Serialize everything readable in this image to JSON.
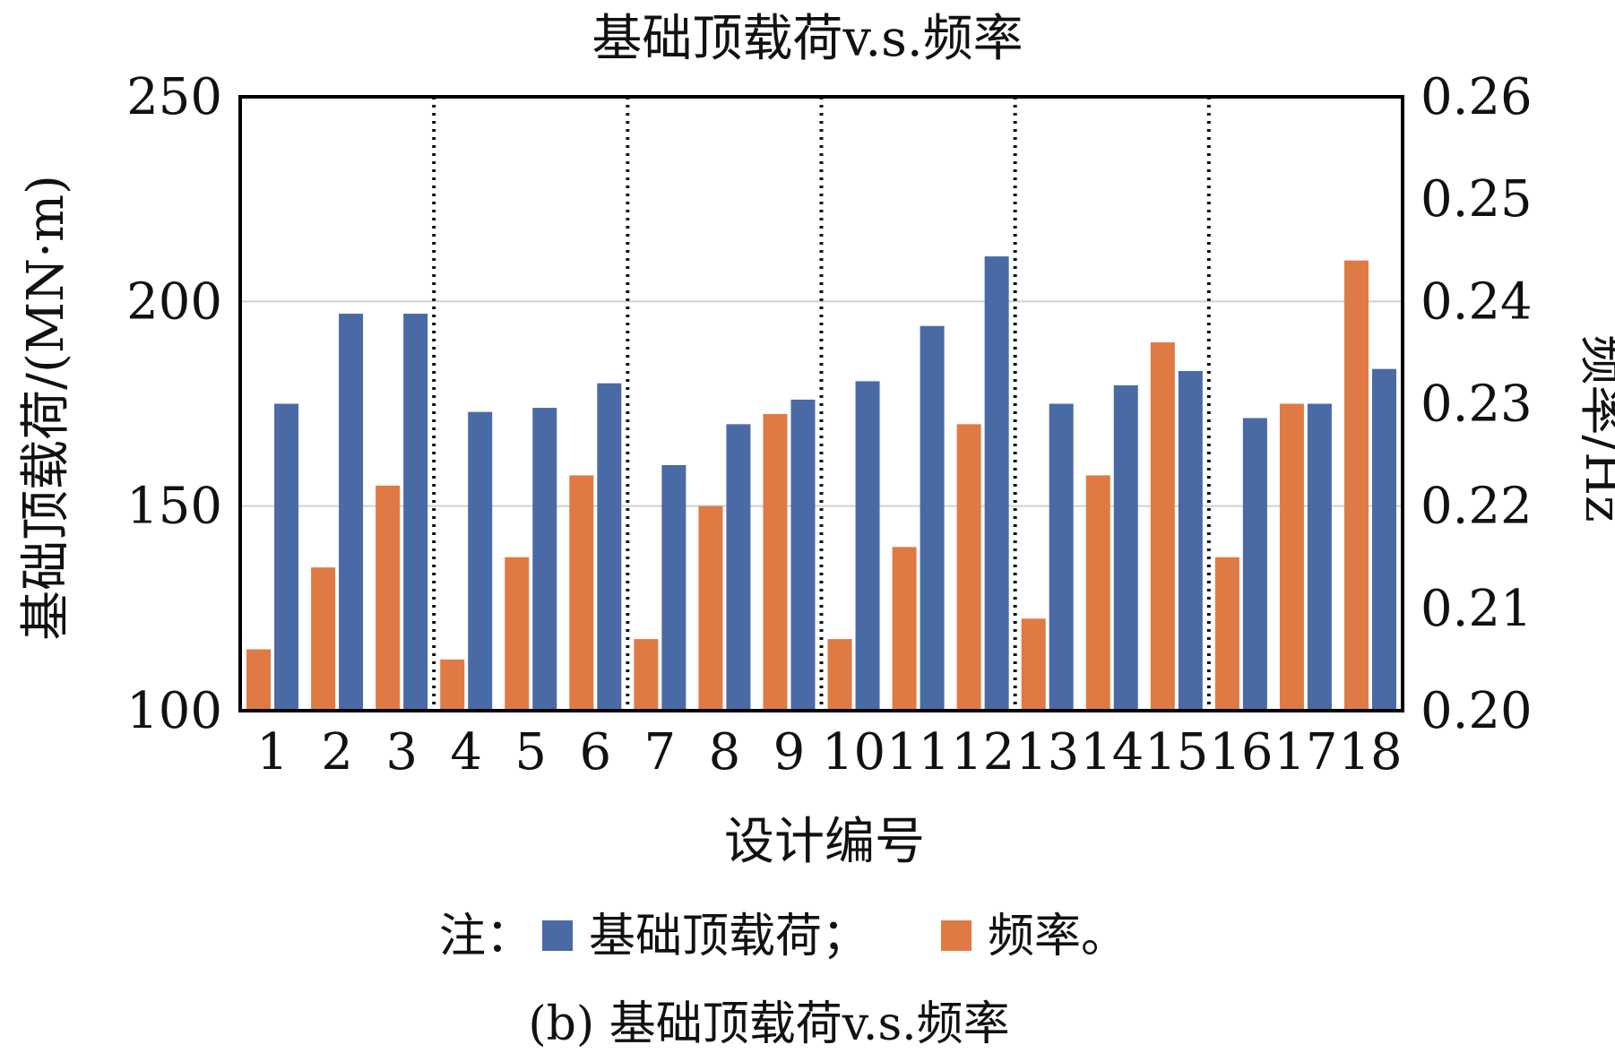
{
  "chart_data": {
    "type": "bar",
    "title": "基础顶载荷v.s.频率",
    "xlabel": "设计编号",
    "ylabel_left": "基础顶载荷/(MN·m)",
    "ylabel_right": "频率/Hz",
    "categories": [
      "1",
      "2",
      "3",
      "4",
      "5",
      "6",
      "7",
      "8",
      "9",
      "10",
      "11",
      "12",
      "13",
      "14",
      "15",
      "16",
      "17",
      "18"
    ],
    "y_left": {
      "min": 100,
      "max": 250,
      "ticks": [
        "100",
        "150",
        "200",
        "250"
      ]
    },
    "y_right": {
      "min": 0.2,
      "max": 0.26,
      "ticks": [
        "0.20",
        "0.21",
        "0.22",
        "0.23",
        "0.24",
        "0.25",
        "0.26"
      ]
    },
    "gridlines_left": [
      150,
      200
    ],
    "group_separators_after": [
      3,
      6,
      9,
      12,
      15
    ],
    "series": [
      {
        "name": "基础顶载荷",
        "axis": "left",
        "color": "#4a6aa5",
        "values": [
          175,
          197,
          197,
          173,
          174,
          180,
          160,
          170,
          176,
          180.5,
          194,
          211,
          175,
          179.5,
          183,
          171.5,
          175,
          183.5
        ]
      },
      {
        "name": "频率",
        "axis": "right",
        "color": "#e07a45",
        "values": [
          0.206,
          0.214,
          0.222,
          0.205,
          0.215,
          0.223,
          0.207,
          0.22,
          0.229,
          0.207,
          0.216,
          0.228,
          0.209,
          0.223,
          0.236,
          0.215,
          0.23,
          0.244
        ]
      }
    ],
    "legend": {
      "prefix": "注：",
      "items": [
        {
          "label": "基础顶载荷；",
          "color": "#4a6aa5"
        },
        {
          "label": "频率。",
          "color": "#e07a45"
        }
      ],
      "placement": "bottom"
    },
    "caption": "(b) 基础顶载荷v.s.频率"
  }
}
